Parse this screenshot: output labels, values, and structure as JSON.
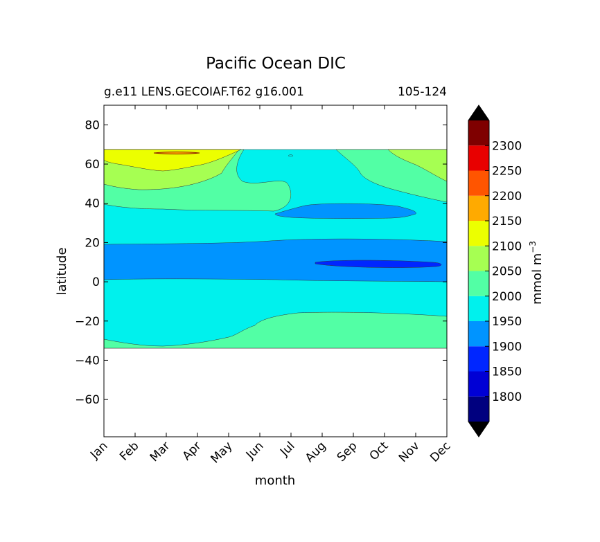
{
  "chart_data": {
    "type": "contour",
    "title": "Pacific Ocean DIC",
    "subtitle_left": "g.e11 LENS.GECOIAF.T62 g16.001",
    "subtitle_right": "105-124",
    "xlabel": "month",
    "ylabel": "latitude",
    "x_ticks": [
      "Jan",
      "Feb",
      "Mar",
      "Apr",
      "May",
      "Jun",
      "Jul",
      "Aug",
      "Sep",
      "Oct",
      "Nov",
      "Dec"
    ],
    "y_ticks": [
      "80",
      "60",
      "40",
      "20",
      "0",
      "−20",
      "−40",
      "−60"
    ],
    "y_tick_values": [
      80,
      60,
      40,
      20,
      0,
      -20,
      -40,
      -60
    ],
    "ylim": [
      -79,
      90
    ],
    "data_lat_range": [
      -34,
      67
    ],
    "colorbar": {
      "label": "mmol m",
      "label_exponent": "−3",
      "levels": [
        1750,
        1800,
        1850,
        1900,
        1950,
        2000,
        2050,
        2100,
        2150,
        2200,
        2250,
        2300,
        2350
      ],
      "tick_labels": [
        "1800",
        "1850",
        "1900",
        "1950",
        "2000",
        "2050",
        "2100",
        "2150",
        "2200",
        "2250",
        "2300"
      ],
      "colors": [
        "#00007f",
        "#0000d5",
        "#0026ff",
        "#0094ff",
        "#00f1ed",
        "#52ffa5",
        "#a6ff52",
        "#ecff00",
        "#ffaa00",
        "#ff5500",
        "#e80000",
        "#7f0000"
      ],
      "extend_color": "#000000"
    },
    "contour_regions": [
      {
        "level": 1900,
        "description": "equatorial band ~0 to 20N"
      },
      {
        "level": 1850,
        "description": "Aug-Dec near 8-12N"
      },
      {
        "level": 1900,
        "description": "Jul-Oct near 33-40N"
      },
      {
        "level": 2000,
        "description": "southern band south of -20 latitude"
      },
      {
        "level": 2050,
        "description": "northern band 45-62N Jan-May"
      },
      {
        "level": 2100,
        "description": "northern edge 57-67N Jan-May"
      }
    ]
  }
}
